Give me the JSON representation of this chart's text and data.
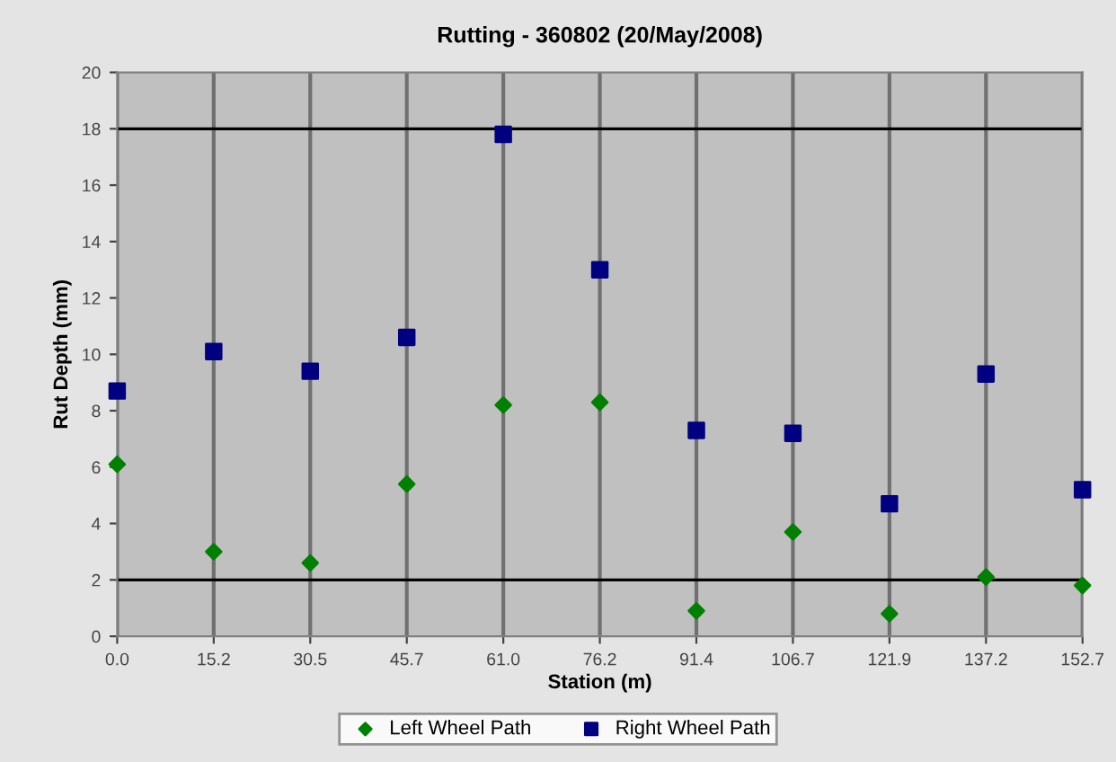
{
  "chart_data": {
    "type": "scatter",
    "title": "Rutting - 360802 (20/May/2008)",
    "xlabel": "Station (m)",
    "ylabel": "Rut Depth (mm)",
    "categories": [
      "0.0",
      "15.2",
      "30.5",
      "45.7",
      "61.0",
      "76.2",
      "91.4",
      "106.7",
      "121.9",
      "137.2",
      "152.7"
    ],
    "series": [
      {
        "name": "Left Wheel Path",
        "color": "#008000",
        "marker": "diamond",
        "values": [
          6.1,
          3.0,
          2.6,
          5.4,
          8.2,
          8.3,
          0.9,
          3.7,
          0.8,
          2.1,
          1.8
        ]
      },
      {
        "name": "Right Wheel Path",
        "color": "#000080",
        "marker": "square",
        "values": [
          8.7,
          10.1,
          9.4,
          10.6,
          17.8,
          13.0,
          7.3,
          7.2,
          4.7,
          9.3,
          5.2
        ]
      }
    ],
    "ylim": [
      0,
      20
    ],
    "yticks": [
      0,
      2,
      4,
      6,
      8,
      10,
      12,
      14,
      16,
      18,
      20
    ],
    "grid": "x",
    "legend": "bottom",
    "ref_lines": [
      {
        "axis": "y",
        "value": 2,
        "color": "#000000"
      },
      {
        "axis": "y",
        "value": 18,
        "color": "#000000"
      }
    ]
  }
}
